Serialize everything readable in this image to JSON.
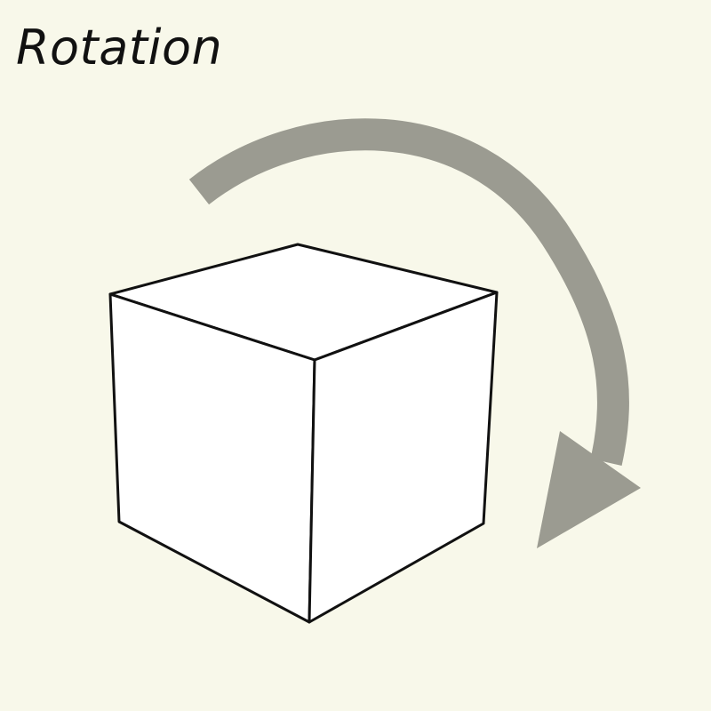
{
  "title": "Rotation",
  "colors": {
    "background": "#f8f8ea",
    "cube_fill": "#ffffff",
    "cube_edge": "#111111",
    "arrow": "#9b9b91"
  },
  "figure": {
    "object": "cube",
    "arrow_direction": "clockwise"
  }
}
